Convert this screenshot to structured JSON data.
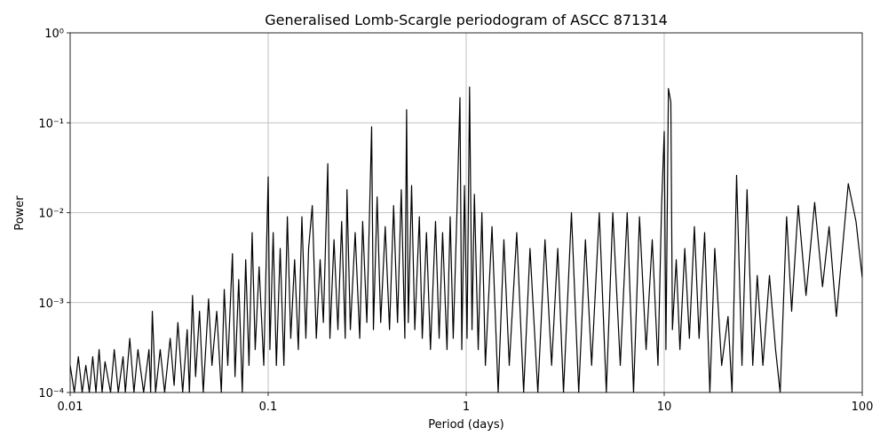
{
  "chart_data": {
    "type": "line",
    "title": "Generalised Lomb-Scargle periodogram of ASCC 871314",
    "x_label": "Period (days)",
    "y_label": "Power",
    "x_scale": "log",
    "y_scale": "log",
    "grid": true,
    "xlim": [
      0.01,
      100
    ],
    "ylim": [
      0.0001,
      1
    ],
    "xticks": [
      0.01,
      0.1,
      1,
      10,
      100
    ],
    "yticks": [
      {
        "value": 0.0001,
        "label": "10⁻⁴"
      },
      {
        "value": 0.001,
        "label": "10⁻³"
      },
      {
        "value": 0.01,
        "label": "10⁻²"
      },
      {
        "value": 0.1,
        "label": "10⁻¹"
      },
      {
        "value": 1,
        "label": "10⁰"
      }
    ],
    "x": [
      0.01,
      0.0105,
      0.011,
      0.0115,
      0.012,
      0.0125,
      0.013,
      0.0135,
      0.014,
      0.0145,
      0.015,
      0.016,
      0.0167,
      0.0175,
      0.0185,
      0.019,
      0.02,
      0.021,
      0.022,
      0.0235,
      0.025,
      0.0255,
      0.026,
      0.027,
      0.0285,
      0.03,
      0.032,
      0.0335,
      0.035,
      0.037,
      0.039,
      0.04,
      0.0415,
      0.043,
      0.045,
      0.047,
      0.05,
      0.052,
      0.055,
      0.058,
      0.06,
      0.0625,
      0.066,
      0.068,
      0.071,
      0.074,
      0.077,
      0.08,
      0.083,
      0.086,
      0.09,
      0.095,
      0.1,
      0.102,
      0.106,
      0.11,
      0.115,
      0.12,
      0.125,
      0.13,
      0.136,
      0.142,
      0.148,
      0.155,
      0.16,
      0.167,
      0.175,
      0.183,
      0.19,
      0.2,
      0.205,
      0.215,
      0.225,
      0.235,
      0.245,
      0.25,
      0.26,
      0.275,
      0.29,
      0.3,
      0.315,
      0.333,
      0.34,
      0.355,
      0.37,
      0.39,
      0.41,
      0.43,
      0.45,
      0.47,
      0.49,
      0.5,
      0.51,
      0.53,
      0.55,
      0.58,
      0.6,
      0.63,
      0.66,
      0.7,
      0.73,
      0.76,
      0.8,
      0.83,
      0.86,
      0.9,
      0.93,
      0.95,
      0.98,
      1.01,
      1.04,
      1.07,
      1.1,
      1.15,
      1.2,
      1.25,
      1.35,
      1.45,
      1.55,
      1.65,
      1.8,
      1.95,
      2.1,
      2.3,
      2.5,
      2.7,
      2.9,
      3.1,
      3.4,
      3.7,
      4.0,
      4.3,
      4.7,
      5.1,
      5.5,
      6.0,
      6.5,
      7.0,
      7.5,
      8.1,
      8.7,
      9.3,
      9.7,
      10.0,
      10.2,
      10.5,
      10.8,
      11.0,
      11.5,
      12.0,
      12.7,
      13.4,
      14.2,
      15.0,
      16.0,
      17.0,
      18.0,
      19.5,
      21.0,
      22.0,
      23.2,
      24.7,
      26.2,
      28.0,
      29.5,
      31.5,
      34.0,
      36.5,
      38.5,
      41.5,
      44.0,
      47.5,
      52.0,
      57.5,
      63.0,
      68.0,
      74.0,
      85.0,
      93.0,
      100
    ],
    "series": [
      {
        "name": "Power",
        "color": "#000000",
        "values": [
          0.0002,
          0.0001,
          0.00025,
          0.0001,
          0.0002,
          0.0001,
          0.00025,
          0.0001,
          0.0003,
          0.0001,
          0.00022,
          0.0001,
          0.0003,
          0.0001,
          0.00025,
          0.0001,
          0.0004,
          0.0001,
          0.0003,
          0.0001,
          0.0003,
          0.0001,
          0.0008,
          0.0001,
          0.0003,
          0.0001,
          0.0004,
          0.00012,
          0.0006,
          0.0001,
          0.0005,
          0.0001,
          0.0012,
          0.00015,
          0.0008,
          0.0001,
          0.0011,
          0.0002,
          0.0008,
          0.0001,
          0.0014,
          0.0002,
          0.0035,
          0.00015,
          0.0018,
          0.0001,
          0.003,
          0.0002,
          0.006,
          0.0003,
          0.0025,
          0.0002,
          0.025,
          0.0003,
          0.006,
          0.0002,
          0.004,
          0.0002,
          0.009,
          0.0004,
          0.003,
          0.0003,
          0.009,
          0.0004,
          0.004,
          0.012,
          0.0004,
          0.003,
          0.0006,
          0.035,
          0.0004,
          0.005,
          0.0005,
          0.008,
          0.0004,
          0.018,
          0.0005,
          0.006,
          0.0004,
          0.008,
          0.0006,
          0.09,
          0.0005,
          0.015,
          0.0006,
          0.007,
          0.0005,
          0.012,
          0.0006,
          0.018,
          0.0004,
          0.14,
          0.0006,
          0.02,
          0.0005,
          0.009,
          0.0004,
          0.006,
          0.0003,
          0.008,
          0.0004,
          0.006,
          0.0003,
          0.009,
          0.0004,
          0.012,
          0.19,
          0.0003,
          0.02,
          0.0004,
          0.25,
          0.0005,
          0.016,
          0.0003,
          0.01,
          0.0002,
          0.007,
          0.0001,
          0.005,
          0.0002,
          0.006,
          0.0001,
          0.004,
          0.0001,
          0.005,
          0.0002,
          0.004,
          0.0001,
          0.01,
          0.0001,
          0.005,
          0.0002,
          0.01,
          0.0001,
          0.01,
          0.0002,
          0.01,
          0.0001,
          0.009,
          0.0003,
          0.005,
          0.0002,
          0.012,
          0.08,
          0.0003,
          0.24,
          0.17,
          0.0005,
          0.003,
          0.0003,
          0.004,
          0.0004,
          0.007,
          0.0004,
          0.006,
          0.0001,
          0.004,
          0.0002,
          0.0007,
          0.0001,
          0.026,
          0.0002,
          0.018,
          0.0002,
          0.002,
          0.0002,
          0.002,
          0.0003,
          0.0001,
          0.009,
          0.0008,
          0.012,
          0.0012,
          0.013,
          0.0015,
          0.007,
          0.0007,
          0.021,
          0.008,
          0.0019
        ]
      }
    ]
  }
}
